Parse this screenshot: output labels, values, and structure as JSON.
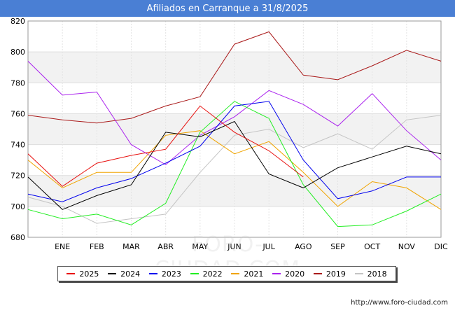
{
  "header": {
    "title": "Afiliados en Carranque a 31/8/2025"
  },
  "footer": {
    "source": "http://www.foro-ciudad.com"
  },
  "watermark": "FORO-CIUDAD.COM",
  "chart_data": {
    "type": "line",
    "title": "Afiliados en Carranque a 31/8/2025",
    "categories": [
      "",
      "ENE",
      "FEB",
      "MAR",
      "ABR",
      "MAY",
      "JUN",
      "JUL",
      "AGO",
      "SEP",
      "OCT",
      "NOV",
      "DIC"
    ],
    "ylim": [
      680,
      820
    ],
    "yticks": [
      680,
      700,
      720,
      740,
      760,
      780,
      800,
      820
    ],
    "grid": true,
    "legend_position": "bottom",
    "series": [
      {
        "name": "2025",
        "color": "#e8100e",
        "values": [
          734,
          713,
          728,
          733,
          737,
          765,
          748,
          736,
          719,
          null,
          null,
          null,
          null
        ]
      },
      {
        "name": "2024",
        "color": "#000000",
        "values": [
          719,
          698,
          707,
          714,
          748,
          745,
          755,
          721,
          712,
          725,
          732,
          739,
          734
        ]
      },
      {
        "name": "2023",
        "color": "#0000ee",
        "values": [
          708,
          703,
          712,
          718,
          728,
          739,
          765,
          768,
          730,
          705,
          710,
          719,
          719
        ]
      },
      {
        "name": "2022",
        "color": "#22ee22",
        "values": [
          698,
          692,
          695,
          688,
          702,
          748,
          768,
          757,
          714,
          687,
          688,
          697,
          708
        ]
      },
      {
        "name": "2021",
        "color": "#f0a400",
        "values": [
          730,
          712,
          722,
          722,
          746,
          749,
          734,
          742,
          722,
          700,
          716,
          712,
          698
        ]
      },
      {
        "name": "2020",
        "color": "#aa22ee",
        "values": [
          794,
          772,
          774,
          740,
          727,
          746,
          758,
          775,
          766,
          752,
          773,
          749,
          730
        ]
      },
      {
        "name": "2019",
        "color": "#aa1a1a",
        "values": [
          759,
          756,
          754,
          757,
          765,
          771,
          805,
          813,
          785,
          782,
          791,
          801,
          794
        ]
      },
      {
        "name": "2018",
        "color": "#c4c4c4",
        "values": [
          706,
          700,
          689,
          692,
          695,
          722,
          746,
          750,
          738,
          747,
          737,
          756,
          759
        ]
      }
    ]
  }
}
